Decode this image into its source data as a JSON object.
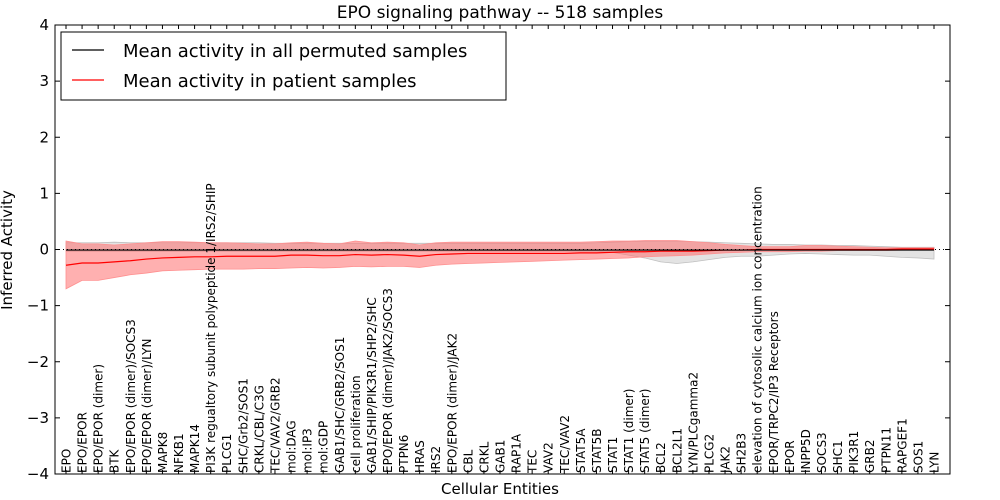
{
  "chart_data": {
    "type": "line",
    "title": "EPO signaling pathway -- 518 samples",
    "xlabel": "Cellular Entities",
    "ylabel": "Inferred Activity",
    "ylim": [
      -4,
      4
    ],
    "yticks": [
      {
        "value": 4,
        "label": "4"
      },
      {
        "value": 3,
        "label": "3"
      },
      {
        "value": 2,
        "label": "2"
      },
      {
        "value": 1,
        "label": "1"
      },
      {
        "value": 0,
        "label": "0"
      },
      {
        "value": -1,
        "label": "−1"
      },
      {
        "value": -2,
        "label": "−2"
      },
      {
        "value": -3,
        "label": "−3"
      },
      {
        "value": -4,
        "label": "−4"
      }
    ],
    "legend": {
      "location": "top-left",
      "entries": [
        {
          "label": "Mean activity in all permuted samples",
          "color": "#000000"
        },
        {
          "label": "Mean activity in patient samples",
          "color": "#ff0000"
        }
      ]
    },
    "categories": [
      "EPO",
      "EPO/EPOR",
      "EPO/EPOR (dimer)",
      "BTK",
      "EPO/EPOR (dimer)/SOCS3",
      "EPO/EPOR (dimer)/LYN",
      "MAPK8",
      "NFKB1",
      "MAPK14",
      "PI3K regualtory subunit polypeptide 1/IRS2/SHIP",
      "PLCG1",
      "SHC/Grb2/SOS1",
      "CRKL/CBL/C3G",
      "TEC/VAV2/GRB2",
      "mol:DAG",
      "mol:IP3",
      "mol:GDP",
      "GAB1/SHC/GRB2/SOS1",
      "cell proliferation",
      "GAB1/SHIP/PIK3R1/SHP2/SHC",
      "EPO/EPOR (dimer)/JAK2/SOCS3",
      "PTPN6",
      "HRAS",
      "IRS2",
      "EPO/EPOR (dimer)/JAK2",
      "CBL",
      "CRKL",
      "GAB1",
      "RAP1A",
      "TEC",
      "VAV2",
      "TEC/VAV2",
      "STAT5A",
      "STAT5B",
      "STAT1",
      "STAT1 (dimer)",
      "STAT5 (dimer)",
      "BCL2",
      "BCL2L1",
      "LYN/PLCgamma2",
      "PLCG2",
      "JAK2",
      "SH2B3",
      "elevation of cytosolic calcium ion concentration",
      "EPOR/TRPC2/IP3 Receptors",
      "EPOR",
      "INPP5D",
      "SOCS3",
      "SHC1",
      "PIK3R1",
      "GRB2",
      "PTPN11",
      "RAPGEF1",
      "SOS1",
      "LYN"
    ],
    "series": [
      {
        "name": "Mean activity in all permuted samples",
        "color": "#000000",
        "values": [
          -0.01,
          -0.01,
          -0.01,
          -0.01,
          -0.01,
          -0.01,
          -0.01,
          -0.01,
          -0.01,
          -0.01,
          -0.01,
          -0.01,
          -0.01,
          -0.01,
          -0.01,
          -0.01,
          -0.01,
          -0.01,
          -0.01,
          -0.01,
          -0.01,
          -0.01,
          -0.01,
          -0.01,
          -0.01,
          -0.01,
          -0.01,
          -0.01,
          -0.01,
          -0.01,
          -0.01,
          -0.01,
          -0.01,
          -0.01,
          -0.01,
          -0.01,
          -0.01,
          -0.01,
          -0.01,
          -0.01,
          -0.01,
          -0.01,
          -0.01,
          -0.01,
          -0.01,
          -0.01,
          -0.01,
          -0.01,
          -0.01,
          -0.01,
          -0.01,
          -0.01,
          -0.01,
          -0.01,
          -0.01
        ],
        "band_lower": [
          -0.03,
          -0.03,
          -0.03,
          -0.03,
          -0.03,
          -0.03,
          -0.03,
          -0.03,
          -0.03,
          -0.03,
          -0.03,
          -0.03,
          -0.03,
          -0.03,
          -0.03,
          -0.03,
          -0.03,
          -0.03,
          -0.03,
          -0.03,
          -0.03,
          -0.03,
          -0.03,
          -0.03,
          -0.03,
          -0.03,
          -0.03,
          -0.03,
          -0.03,
          -0.03,
          -0.03,
          -0.03,
          -0.03,
          -0.03,
          -0.05,
          -0.1,
          -0.15,
          -0.22,
          -0.25,
          -0.22,
          -0.18,
          -0.14,
          -0.12,
          -0.12,
          -0.1,
          -0.08,
          -0.07,
          -0.08,
          -0.09,
          -0.1,
          -0.1,
          -0.12,
          -0.14,
          -0.15,
          -0.17
        ],
        "band_upper": [
          0.12,
          0.12,
          0.12,
          0.13,
          0.12,
          0.12,
          0.12,
          0.12,
          0.12,
          0.12,
          0.12,
          0.12,
          0.12,
          0.11,
          0.11,
          0.11,
          0.11,
          0.11,
          0.11,
          0.11,
          0.11,
          0.11,
          0.11,
          0.11,
          0.11,
          0.11,
          0.11,
          0.11,
          0.11,
          0.11,
          0.11,
          0.11,
          0.11,
          0.12,
          0.13,
          0.14,
          0.15,
          0.15,
          0.15,
          0.14,
          0.13,
          0.12,
          0.11,
          0.1,
          0.09,
          0.09,
          0.08,
          0.08,
          0.07,
          0.07,
          0.06,
          0.05,
          0.04,
          0.04,
          0.04
        ]
      },
      {
        "name": "Mean activity in patient samples",
        "color": "#ff0000",
        "values": [
          -0.28,
          -0.24,
          -0.24,
          -0.22,
          -0.2,
          -0.17,
          -0.15,
          -0.14,
          -0.13,
          -0.13,
          -0.12,
          -0.12,
          -0.12,
          -0.12,
          -0.1,
          -0.1,
          -0.11,
          -0.11,
          -0.09,
          -0.1,
          -0.09,
          -0.1,
          -0.12,
          -0.09,
          -0.08,
          -0.07,
          -0.07,
          -0.07,
          -0.07,
          -0.07,
          -0.07,
          -0.07,
          -0.06,
          -0.06,
          -0.05,
          -0.04,
          -0.04,
          -0.03,
          -0.03,
          -0.03,
          -0.02,
          -0.01,
          -0.01,
          0.0,
          0.0,
          0.0,
          0.0,
          0.0,
          0.0,
          0.0,
          0.0,
          0.0,
          0.01,
          0.01,
          0.01
        ],
        "band_lower": [
          -0.7,
          -0.55,
          -0.55,
          -0.5,
          -0.45,
          -0.42,
          -0.38,
          -0.37,
          -0.36,
          -0.35,
          -0.35,
          -0.35,
          -0.34,
          -0.34,
          -0.33,
          -0.32,
          -0.33,
          -0.32,
          -0.3,
          -0.31,
          -0.3,
          -0.3,
          -0.32,
          -0.28,
          -0.26,
          -0.25,
          -0.24,
          -0.23,
          -0.22,
          -0.21,
          -0.2,
          -0.19,
          -0.18,
          -0.17,
          -0.16,
          -0.15,
          -0.13,
          -0.12,
          -0.11,
          -0.1,
          -0.08,
          -0.06,
          -0.05,
          -0.04,
          -0.04,
          -0.04,
          -0.03,
          -0.03,
          -0.02,
          -0.02,
          -0.02,
          -0.02,
          -0.01,
          -0.01,
          -0.01
        ],
        "band_upper": [
          0.15,
          0.1,
          0.1,
          0.08,
          0.1,
          0.12,
          0.14,
          0.14,
          0.13,
          0.12,
          0.12,
          0.11,
          0.1,
          0.1,
          0.12,
          0.13,
          0.11,
          0.1,
          0.15,
          0.12,
          0.13,
          0.12,
          0.08,
          0.12,
          0.13,
          0.13,
          0.13,
          0.13,
          0.13,
          0.13,
          0.13,
          0.13,
          0.13,
          0.14,
          0.15,
          0.15,
          0.16,
          0.16,
          0.16,
          0.14,
          0.12,
          0.09,
          0.07,
          0.05,
          0.05,
          0.05,
          0.07,
          0.07,
          0.06,
          0.05,
          0.04,
          0.03,
          0.03,
          0.03,
          0.03
        ]
      }
    ]
  }
}
